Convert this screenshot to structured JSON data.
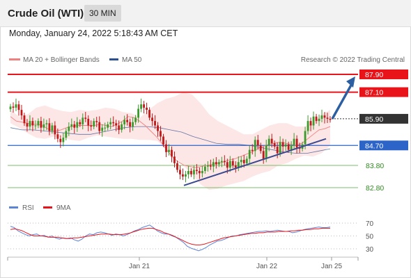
{
  "header": {
    "title": "Crude Oil (WTI)",
    "timeframe": "30 MIN"
  },
  "datetime": "Monday, January 24, 2022 5:18:43 AM CET",
  "legend": {
    "ma20": "MA 20 + Bollinger Bands",
    "ma50": "MA 50",
    "credit": "Research © 2022 Trading Central"
  },
  "rsi_legend": {
    "rsi": "RSI",
    "ma9": "9MA"
  },
  "colors": {
    "resistance": "#e8141a",
    "support": "#7bbf6a",
    "ma20": "#f08080",
    "ma50": "#2c4f8f",
    "up": "#3c9a2c",
    "down": "#c01818",
    "band": "#fde3e3",
    "arrow": "#2c5fa1",
    "price": "#333333",
    "rsi": "#5b83d6",
    "rsi_ma": "#e8141a"
  },
  "chart_data": [
    {
      "type": "candlestick",
      "title": "Crude Oil (WTI)",
      "timeframe": "30 MIN",
      "y_range": [
        82.5,
        88.2
      ],
      "x_ticks": [
        "Jan 21",
        "Jan 22",
        "Jan 25"
      ],
      "levels": [
        {
          "value": 87.9,
          "label": "87.90",
          "kind": "resistance"
        },
        {
          "value": 87.1,
          "label": "87.10",
          "kind": "resistance"
        },
        {
          "value": 85.9,
          "label": "85.90",
          "kind": "price"
        },
        {
          "value": 84.7,
          "label": "84.70",
          "kind": "pivot"
        },
        {
          "value": 83.8,
          "label": "83.80",
          "kind": "support"
        },
        {
          "value": 82.8,
          "label": "82.80",
          "kind": "support"
        }
      ],
      "close": [
        86.45,
        86.4,
        86.55,
        86.3,
        86.05,
        85.7,
        85.55,
        85.8,
        85.6,
        85.6,
        85.8,
        85.5,
        85.65,
        85.7,
        85.35,
        85.6,
        85.2,
        85.0,
        84.85,
        85.05,
        85.35,
        85.55,
        85.65,
        85.5,
        85.75,
        85.65,
        85.95,
        85.9,
        85.6,
        85.55,
        85.8,
        85.75,
        85.35,
        85.5,
        85.5,
        85.65,
        85.75,
        85.7,
        85.6,
        85.4,
        85.65,
        85.85,
        85.75,
        85.55,
        85.75,
        85.95,
        86.35,
        86.55,
        86.4,
        86.3,
        85.95,
        85.8,
        85.6,
        85.35,
        85.1,
        84.75,
        84.4,
        84.5,
        84.2,
        83.9,
        83.6,
        83.4,
        83.3,
        83.4,
        83.55,
        83.4,
        83.6,
        83.55,
        83.45,
        83.55,
        83.75,
        83.8,
        83.75,
        83.95,
        83.85,
        83.95,
        84.0,
        83.95,
        83.7,
        84.0,
        83.8,
        83.7,
        83.95,
        84.05,
        83.9,
        84.1,
        84.5,
        84.45,
        84.95,
        84.7,
        84.45,
        84.1,
        84.7,
        85.0,
        84.8,
        84.65,
        84.35,
        84.85,
        84.65,
        84.75,
        84.5,
        84.7,
        85.0,
        84.6,
        84.55,
        84.75,
        85.35,
        85.8,
        85.6,
        86.0,
        85.8,
        85.9,
        86.05,
        85.95,
        85.9,
        85.85
      ],
      "ma20": [
        86.0,
        85.8,
        85.75,
        85.7,
        85.65,
        85.65,
        85.55,
        85.4,
        85.35,
        85.4,
        85.5,
        85.55,
        85.6,
        85.6,
        85.6,
        85.6,
        85.65,
        85.6,
        85.55,
        85.65,
        85.8,
        86.0,
        85.95,
        85.8,
        85.6,
        85.35,
        85.1,
        84.8,
        84.45,
        84.15,
        83.95,
        83.8,
        83.75,
        83.7,
        83.75,
        83.8,
        83.85,
        83.9,
        83.95,
        84.05,
        84.1,
        84.2,
        84.3,
        84.4,
        84.55,
        84.65,
        84.75,
        84.8,
        84.85,
        84.8,
        84.75,
        84.7,
        84.8,
        85.0,
        85.2,
        85.4,
        85.45,
        85.55
      ],
      "ma50": [
        85.5,
        85.4,
        85.4,
        85.35,
        85.3,
        85.25,
        85.2,
        85.2,
        85.3,
        85.4,
        85.5,
        85.55,
        85.55,
        85.5,
        85.4,
        85.3,
        85.1,
        84.95,
        84.8,
        84.75,
        84.75,
        84.7,
        84.6,
        84.5,
        84.4,
        84.35,
        84.35,
        84.45,
        84.55
      ],
      "bollinger_upper": [
        86.3,
        86.0,
        86.1,
        86.4,
        86.5,
        86.35,
        86.25,
        86.2,
        86.3,
        86.25,
        86.3,
        86.4,
        86.35,
        86.2,
        86.15,
        85.95,
        86.3,
        86.6,
        86.8,
        86.9,
        87.1,
        87.0,
        86.6,
        86.1,
        85.8,
        85.6,
        85.4,
        85.2,
        85.2,
        85.4,
        85.6,
        85.7,
        85.7,
        85.55,
        85.55,
        85.7,
        86.1,
        86.3
      ],
      "bollinger_lower": [
        85.7,
        85.5,
        85.25,
        85.05,
        85.0,
        85.1,
        85.05,
        84.95,
        84.9,
        85.05,
        85.15,
        85.1,
        85.05,
        85.0,
        85.0,
        84.95,
        84.95,
        84.9,
        84.55,
        84.2,
        83.8,
        83.4,
        82.95,
        82.7,
        82.75,
        82.9,
        83.0,
        83.1,
        83.3,
        83.45,
        83.55,
        83.8,
        83.9,
        84.1,
        84.25,
        84.2,
        84.35,
        84.7
      ],
      "trendline": [
        {
          "x": "Jan 21",
          "y": 82.9
        },
        {
          "x": "Jan 25",
          "y": 85.0
        }
      ],
      "projection": [
        {
          "x": "Jan 25",
          "y": 85.9
        },
        {
          "x": "Jan 25",
          "y": 87.9
        }
      ]
    },
    {
      "type": "line",
      "title": "RSI",
      "y_range": [
        15,
        80
      ],
      "y_ticks": [
        70,
        50,
        30
      ],
      "x_ticks": [
        "Jan 21",
        "Jan 22",
        "Jan 25"
      ],
      "series": [
        {
          "name": "RSI",
          "values": [
            65,
            63,
            58,
            55,
            52,
            50,
            52,
            53,
            50,
            51,
            48,
            50,
            47,
            45,
            47,
            46,
            47,
            44,
            42,
            45,
            50,
            53,
            52,
            55,
            56,
            55,
            53,
            51,
            53,
            52,
            50,
            52,
            55,
            58,
            60,
            63,
            65,
            67,
            63,
            58,
            55,
            53,
            53,
            50,
            48,
            44,
            40,
            34,
            31,
            29,
            27,
            29,
            32,
            36,
            39,
            42,
            43,
            45,
            48,
            50,
            50,
            52,
            53,
            54,
            55,
            56,
            57,
            57,
            58,
            57,
            58,
            59,
            58,
            57,
            57,
            55,
            56,
            58,
            60,
            61,
            62,
            63,
            64,
            63,
            63,
            64
          ]
        },
        {
          "name": "9MA",
          "values": [
            60,
            61,
            60,
            58,
            55,
            52,
            50,
            50,
            50,
            49,
            48,
            48,
            48,
            47,
            46,
            46,
            47,
            47,
            48,
            49,
            50,
            51,
            52,
            53,
            53,
            53,
            52,
            52,
            52,
            53,
            54,
            56,
            58,
            60,
            61,
            62,
            62,
            60,
            58,
            55,
            53,
            51,
            48,
            45,
            42,
            39,
            37,
            36,
            36,
            37,
            39,
            41,
            43,
            45,
            47,
            48,
            49,
            50,
            51,
            52,
            53,
            54,
            54,
            55,
            55,
            56,
            56,
            56,
            57,
            57,
            57,
            58,
            58,
            59,
            59,
            60,
            60,
            61,
            61,
            62,
            62,
            62
          ]
        }
      ]
    }
  ]
}
